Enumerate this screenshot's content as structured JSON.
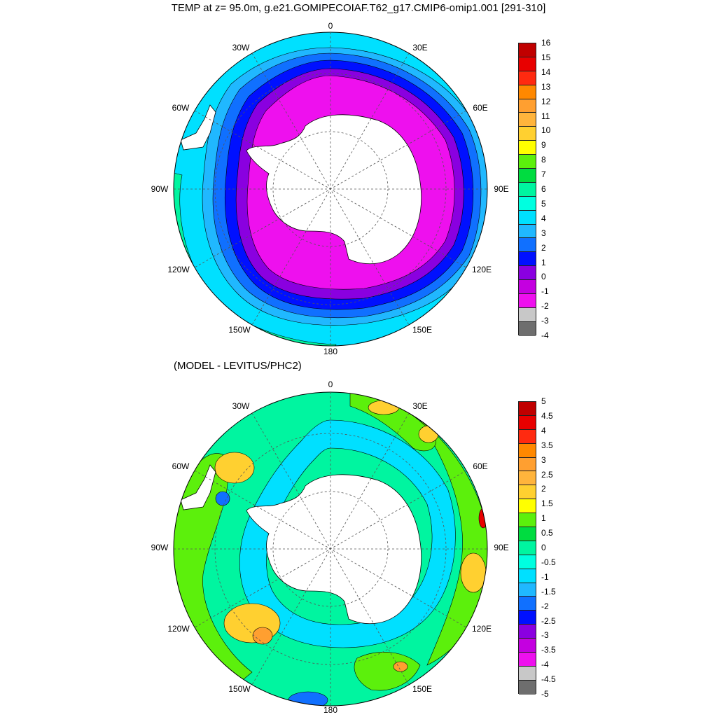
{
  "title": "TEMP at z=  95.0m, g.e21.GOMIPECOIAF.T62_g17.CMIP6-omip1.001 [291-310]",
  "subtitle": "(MODEL - LEVITUS/PHC2)",
  "lon_labels": [
    "0",
    "30E",
    "60E",
    "90E",
    "120E",
    "150E",
    "180",
    "150W",
    "120W",
    "90W",
    "60W",
    "30W"
  ],
  "top_colorbar": {
    "labels": [
      "16",
      "15",
      "14",
      "13",
      "12",
      "11",
      "10",
      "9",
      "8",
      "7",
      "6",
      "5",
      "4",
      "3",
      "2",
      "1",
      "0",
      "-1",
      "-2",
      "-3",
      "-4"
    ],
    "colors": [
      "#c00000",
      "#e80000",
      "#ff2a10",
      "#ff8800",
      "#ff9f30",
      "#ffb43c",
      "#ffd030",
      "#ffff00",
      "#5cf00c",
      "#00dc40",
      "#00f5a0",
      "#00ffe0",
      "#00e0ff",
      "#20b8ff",
      "#1070ff",
      "#0010ff",
      "#8a00e0",
      "#c400e0",
      "#ee10ee",
      "#c8c8c8"
    ],
    "last_color": "#6e6e6e"
  },
  "bottom_colorbar": {
    "labels": [
      "5",
      "4.5",
      "4",
      "3.5",
      "3",
      "2.5",
      "2",
      "1.5",
      "1",
      "0.5",
      "0",
      "-0.5",
      "-1",
      "-1.5",
      "-2",
      "-2.5",
      "-3",
      "-3.5",
      "-4",
      "-4.5",
      "-5"
    ],
    "colors": [
      "#c00000",
      "#e80000",
      "#ff2a10",
      "#ff8800",
      "#ff9f30",
      "#ffb43c",
      "#ffd030",
      "#ffff00",
      "#5cf00c",
      "#00dc40",
      "#00f5a0",
      "#00ffe0",
      "#00e0ff",
      "#20b8ff",
      "#1070ff",
      "#0010ff",
      "#8a00e0",
      "#c400e0",
      "#ee10ee",
      "#c8c8c8"
    ],
    "last_color": "#6e6e6e"
  },
  "top_map_colors": {
    "outer": "#00e0ff",
    "warm_band": "#00f5a0",
    "ring_1": "#20b8ff",
    "ring_2": "#1070ff",
    "ring_3": "#0010ff",
    "ring_4": "#8a00e0",
    "inner": "#ee10ee",
    "land": "#ffffff"
  },
  "bottom_map_colors": {
    "base": "#00f5a0",
    "cool": "#00e0ff",
    "warm_1": "#5cf00c",
    "warm_2": "#ffd030",
    "warm_3": "#ff9f30",
    "hot": "#e80000",
    "cold": "#1070ff",
    "land": "#ffffff"
  }
}
